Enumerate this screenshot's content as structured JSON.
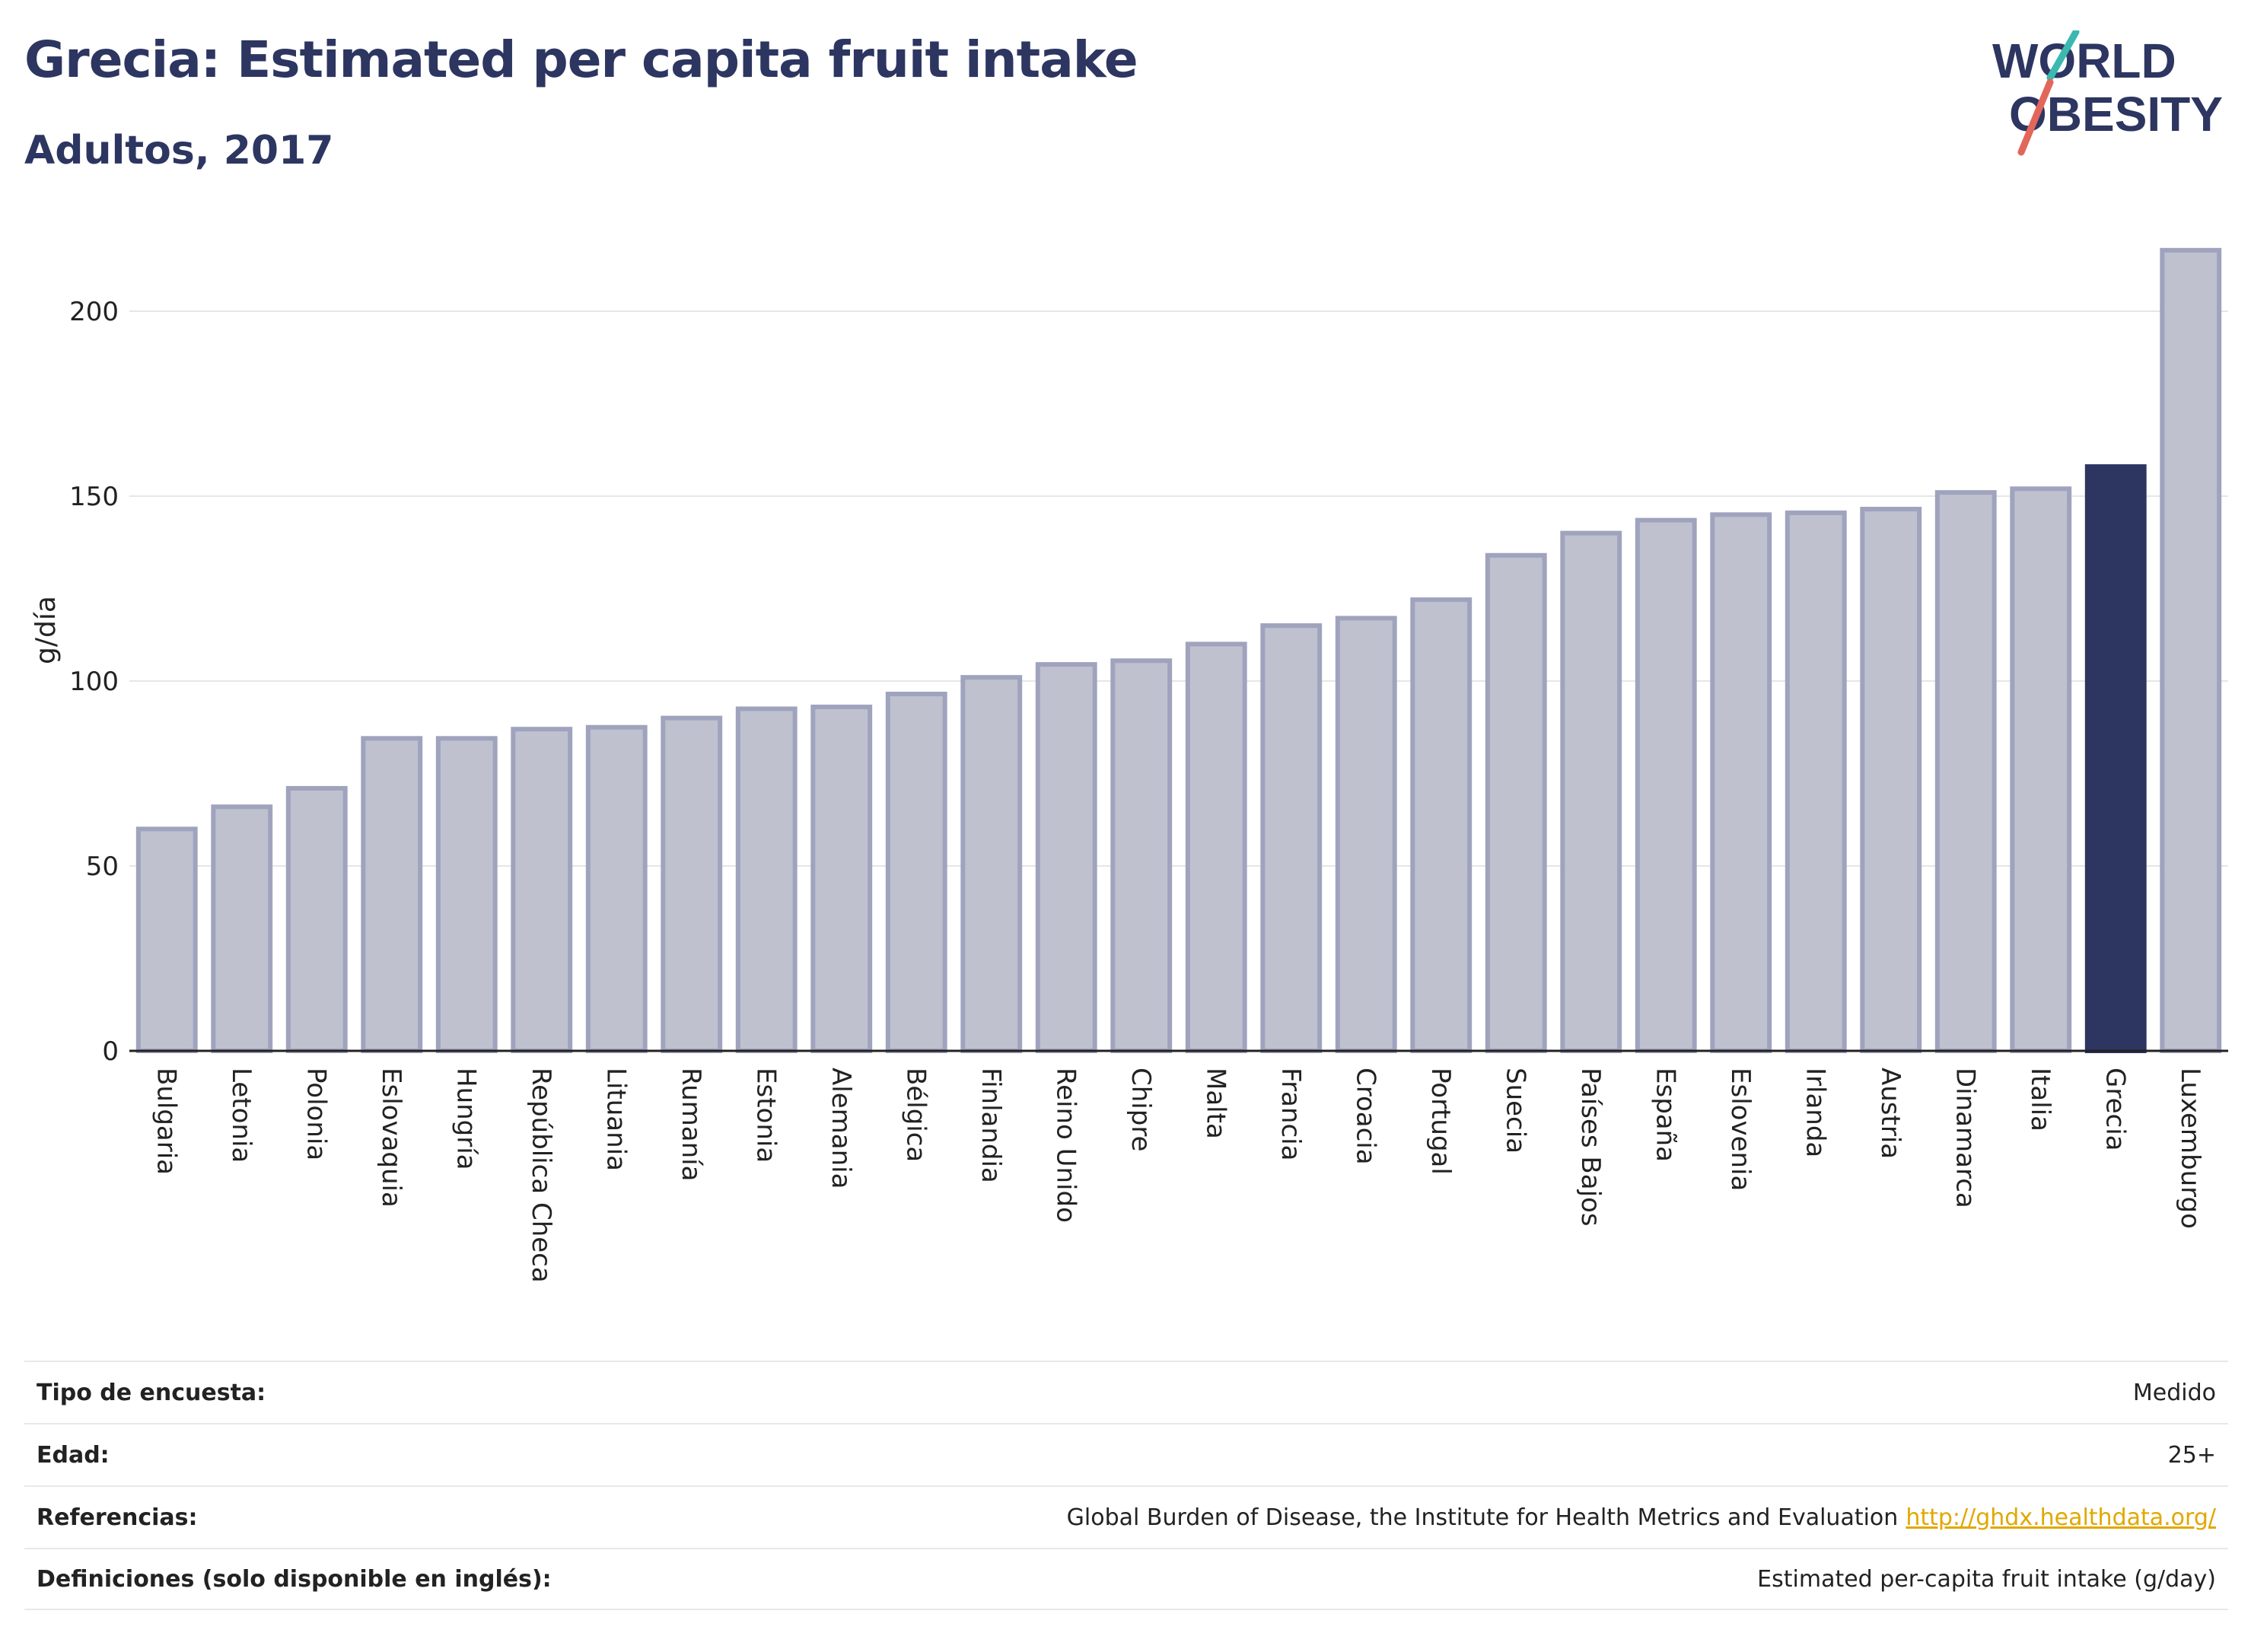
{
  "header": {
    "title": "Grecia: Estimated per capita fruit intake",
    "subtitle": "Adultos, 2017"
  },
  "logo": {
    "line1": "WORLD",
    "line2": "OBESITY"
  },
  "colors": {
    "bar_default": "#bfc1cf",
    "bar_default_stroke": "#9fa3bd",
    "bar_highlight": "#2d3561",
    "title": "#2d3561",
    "logo_teal": "#3bb8b0",
    "logo_coral": "#e2665a"
  },
  "chart_data": {
    "type": "bar",
    "ylabel": "g/día",
    "ylim": [
      0,
      220
    ],
    "yticks": [
      0,
      50,
      100,
      150,
      200
    ],
    "grid": true,
    "highlight": "Grecia",
    "categories": [
      "Bulgaria",
      "Letonia",
      "Polonia",
      "Eslovaquia",
      "Hungría",
      "República Checa",
      "Lituania",
      "Rumanía",
      "Estonia",
      "Alemania",
      "Bélgica",
      "Finlandia",
      "Reino Unido",
      "Chipre",
      "Malta",
      "Francia",
      "Croacia",
      "Portugal",
      "Suecia",
      "Países Bajos",
      "España",
      "Eslovenia",
      "Irlanda",
      "Austria",
      "Dinamarca",
      "Italia",
      "Grecia",
      "Luxemburgo"
    ],
    "values": [
      60,
      66,
      71,
      84.5,
      84.5,
      87,
      87.5,
      90,
      92.5,
      93,
      96.5,
      101,
      104.5,
      105.5,
      110,
      115,
      117,
      122,
      134,
      140,
      143.5,
      145,
      145.5,
      146.5,
      151,
      152,
      158,
      216.5
    ]
  },
  "info": {
    "rows": [
      {
        "label": "Tipo de encuesta:",
        "value": "Medido",
        "link": ""
      },
      {
        "label": "Edad:",
        "value": "25+",
        "link": ""
      },
      {
        "label": "Referencias:",
        "value": "Global Burden of Disease, the Institute for Health Metrics and Evaluation",
        "link": "http://ghdx.healthdata.org/"
      },
      {
        "label": "Definiciones (solo disponible en inglés):",
        "value": "Estimated per-capita fruit intake (g/day)",
        "link": ""
      }
    ]
  }
}
